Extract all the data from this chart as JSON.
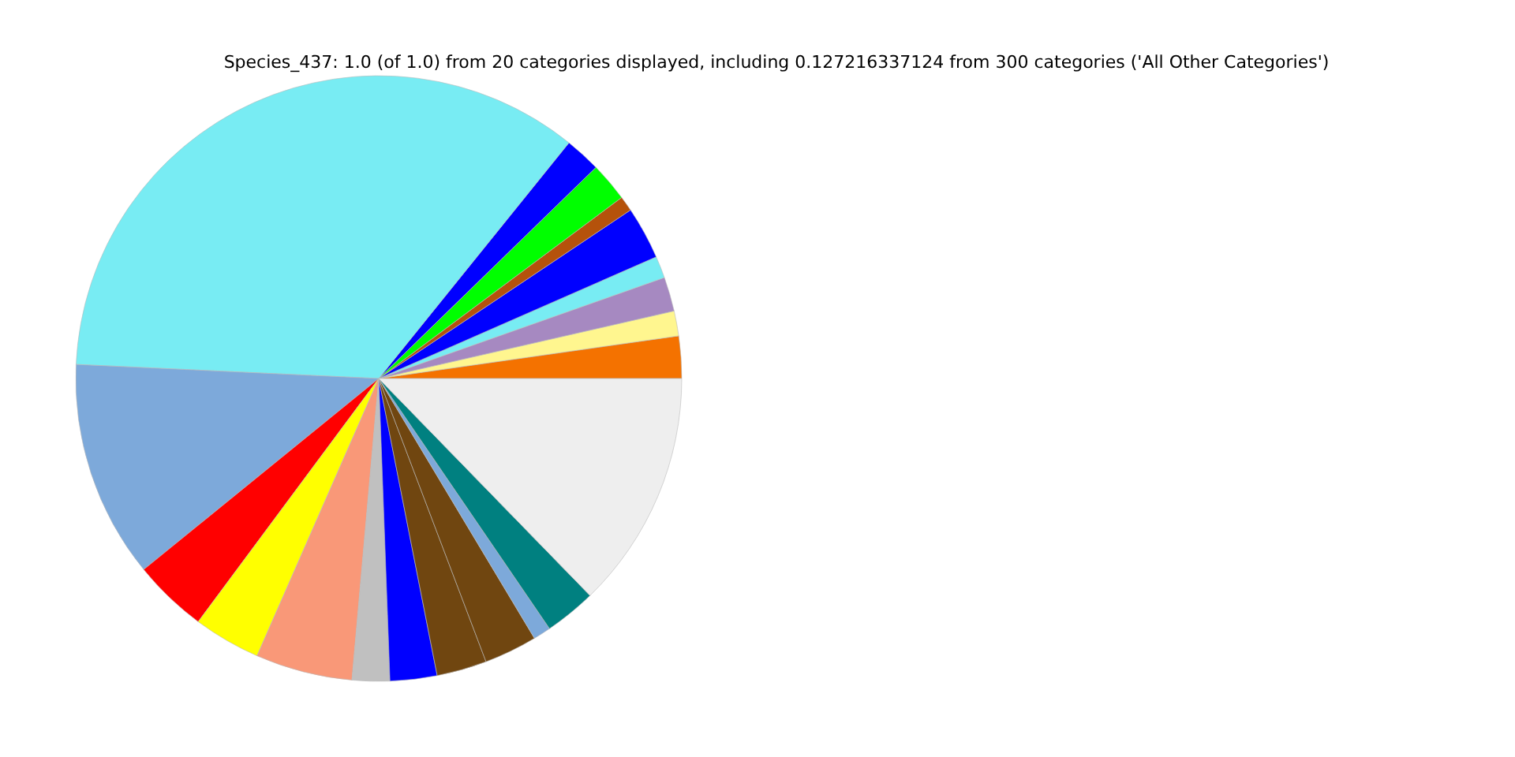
{
  "chart_data": {
    "type": "pie",
    "title": "Species_437: 1.0 (of 1.0) from 20 categories displayed, including 0.127216337124 from 300 categories ('All Other Categories')",
    "categories": [
      null,
      null,
      null,
      null,
      null,
      null,
      null,
      null,
      null,
      null,
      null,
      null,
      null,
      null,
      null,
      null,
      null,
      null,
      null,
      null
    ],
    "values": [
      2.25,
      1.33,
      1.83,
      1.17,
      2.81,
      0.81,
      2.08,
      1.92,
      35.06,
      11.61,
      3.97,
      3.58,
      5.17,
      2.0,
      2.5,
      2.67,
      2.83,
      0.94,
      2.75,
      12.72
    ],
    "colors": [
      "#f47200",
      "#fff68f",
      "#a689c1",
      "#78ecf3",
      "#0000ff",
      "#b5520b",
      "#00ff00",
      "#0000ff",
      "#78ecf3",
      "#7da9da",
      "#ff0000",
      "#ffff00",
      "#f99878",
      "#c0c0c0",
      "#0000ff",
      "#704610",
      "#704610",
      "#7da9da",
      "#008080",
      "#eeeeee"
    ]
  }
}
